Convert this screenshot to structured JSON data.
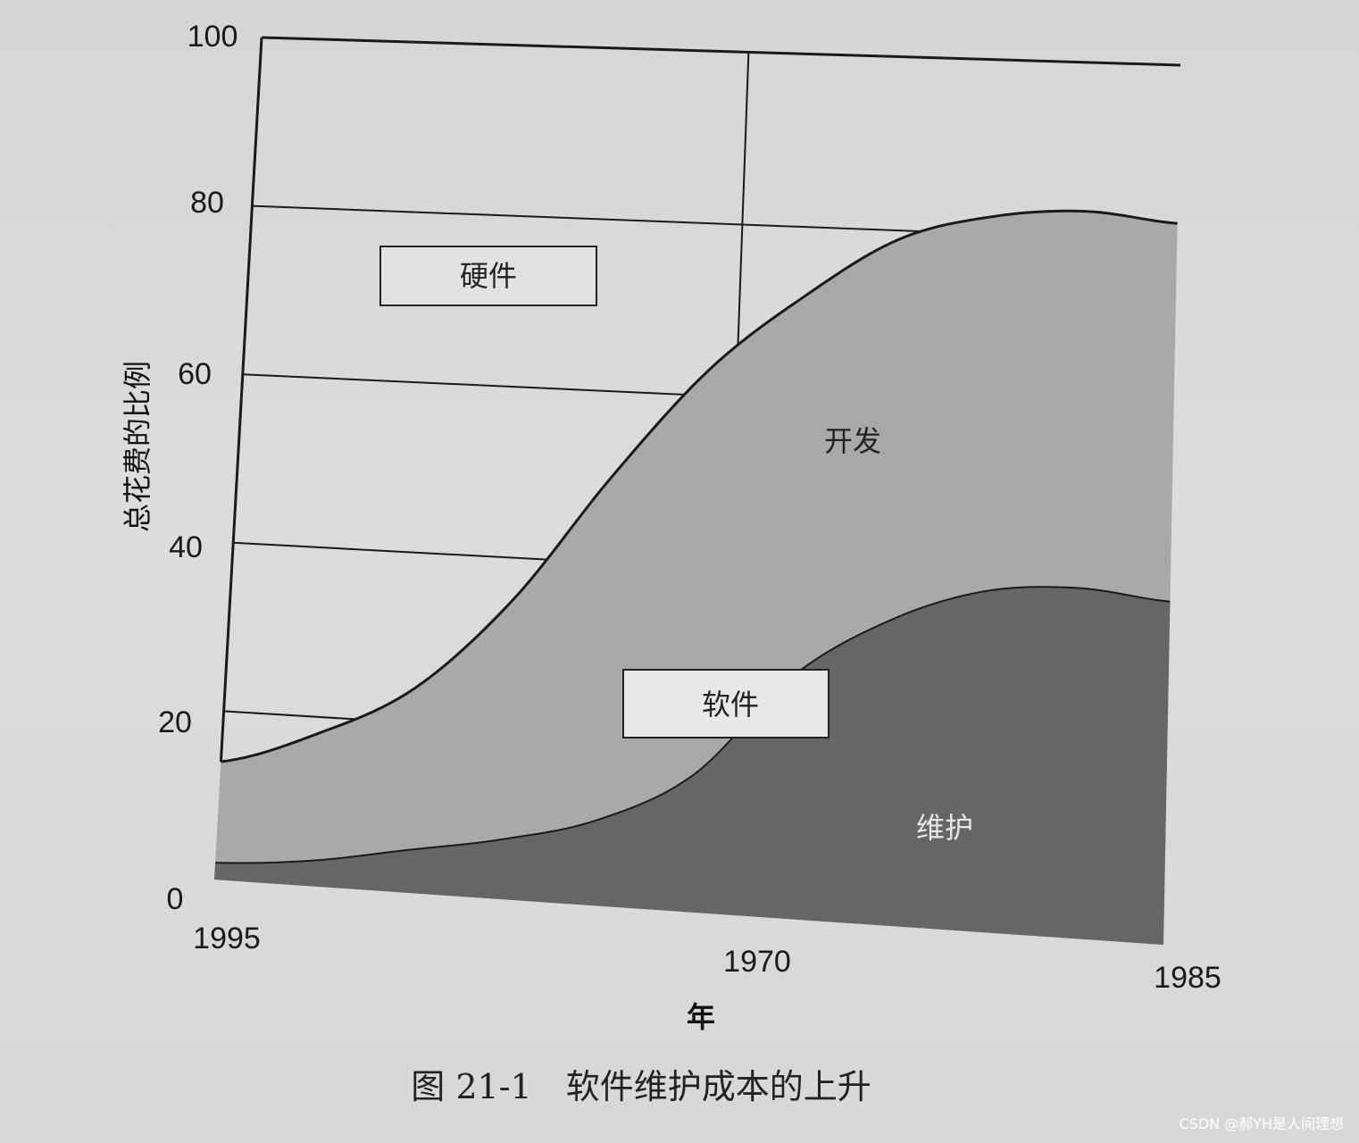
{
  "chart_data": {
    "type": "area",
    "ylabel": "总花费的比例",
    "xlabel": "年",
    "ylim": [
      0,
      100
    ],
    "y_ticks": [
      "100",
      "80",
      "60",
      "40",
      "20",
      "0"
    ],
    "x_ticks": [
      "1995",
      "1970",
      "1985"
    ],
    "series": [
      {
        "name": "维护",
        "values": [
          2,
          3,
          5,
          7,
          10,
          16,
          28,
          35,
          39,
          40,
          39
        ]
      },
      {
        "name": "开发",
        "values": [
          14,
          18,
          24,
          35,
          50,
          63,
          72,
          79,
          82,
          83,
          82
        ]
      },
      {
        "name": "硬件",
        "values": [
          100,
          100,
          100,
          100,
          100,
          100,
          100,
          100,
          100,
          100,
          100
        ]
      }
    ],
    "region_labels": {
      "hardware": "硬件",
      "development": "开发",
      "software": "软件",
      "maintenance": "维护"
    },
    "grid": true,
    "caption": "图 21-1　软件维护成本的上升"
  },
  "colors": {
    "maintenance": "#666666",
    "development": "#a9a9a9",
    "background": "#d8d8d8",
    "line": "#1a1a1a"
  },
  "watermark": "CSDN @郝YH是人间理想"
}
